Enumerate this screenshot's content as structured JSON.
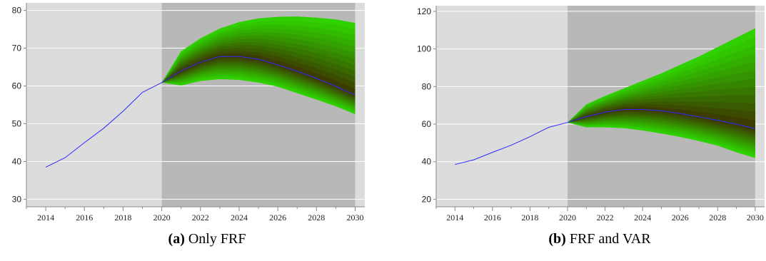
{
  "chart_data": [
    {
      "type": "line",
      "caption_label": "(a)",
      "caption_text": "Only FRF",
      "xlim": [
        2013,
        2030.5
      ],
      "ylim": [
        28,
        82
      ],
      "yticks": [
        30,
        40,
        50,
        60,
        70,
        80
      ],
      "xticks": [
        2014,
        2016,
        2018,
        2020,
        2022,
        2024,
        2026,
        2028,
        2030
      ],
      "forecast_start": 2020,
      "series": [
        {
          "x": [
            2014,
            2015,
            2016,
            2017,
            2018,
            2019,
            2020,
            2021,
            2022,
            2023,
            2024,
            2025,
            2026,
            2027,
            2028,
            2029,
            2030
          ],
          "y": [
            38.5,
            41,
            45,
            48.8,
            53.3,
            58.3,
            60.9,
            64,
            66.3,
            67.8,
            67.8,
            67.1,
            65.6,
            63.9,
            62,
            59.9,
            57.6
          ]
        }
      ],
      "fan": {
        "x": [
          2020,
          2021,
          2022,
          2023,
          2024,
          2025,
          2026,
          2027,
          2028,
          2029,
          2030
        ],
        "upper": [
          60.9,
          69.2,
          72.6,
          75.2,
          76.9,
          77.9,
          78.3,
          78.4,
          78.1,
          77.6,
          76.7
        ],
        "lower": [
          60.9,
          60.1,
          61.3,
          61.8,
          61.6,
          60.9,
          59.8,
          58.1,
          56.4,
          54.6,
          52.5
        ]
      }
    },
    {
      "type": "line",
      "caption_label": "(b)",
      "caption_text": "FRF and VAR",
      "xlim": [
        2013,
        2030.5
      ],
      "ylim": [
        16,
        123
      ],
      "yticks": [
        20,
        40,
        60,
        80,
        100,
        120
      ],
      "xticks": [
        2014,
        2016,
        2018,
        2020,
        2022,
        2024,
        2026,
        2028,
        2030
      ],
      "forecast_start": 2020,
      "series": [
        {
          "x": [
            2014,
            2015,
            2016,
            2017,
            2018,
            2019,
            2020,
            2021,
            2022,
            2023,
            2024,
            2025,
            2026,
            2027,
            2028,
            2029,
            2030
          ],
          "y": [
            38.5,
            41,
            45,
            48.8,
            53.3,
            58.3,
            60.9,
            64,
            66.3,
            67.8,
            67.8,
            67.1,
            65.6,
            63.9,
            62,
            59.9,
            57.6
          ]
        }
      ],
      "fan": {
        "x": [
          2020,
          2021,
          2022,
          2023,
          2024,
          2025,
          2026,
          2027,
          2028,
          2029,
          2030
        ],
        "upper": [
          60.9,
          70.5,
          75,
          79,
          83,
          87,
          91.5,
          96,
          101,
          106,
          111
        ],
        "lower": [
          60.9,
          58.3,
          58.3,
          57.8,
          56.6,
          55,
          53.2,
          51,
          48.5,
          45,
          42
        ]
      }
    }
  ],
  "colors": {
    "history_bg": "#dcdcdc",
    "forecast_bg": "#b8b8b8",
    "gridline": "#ffffff",
    "axis": "#888888",
    "line": "#2b2bff",
    "fan_outer": "#2fd200",
    "fan_inner": "#3c3c00"
  }
}
